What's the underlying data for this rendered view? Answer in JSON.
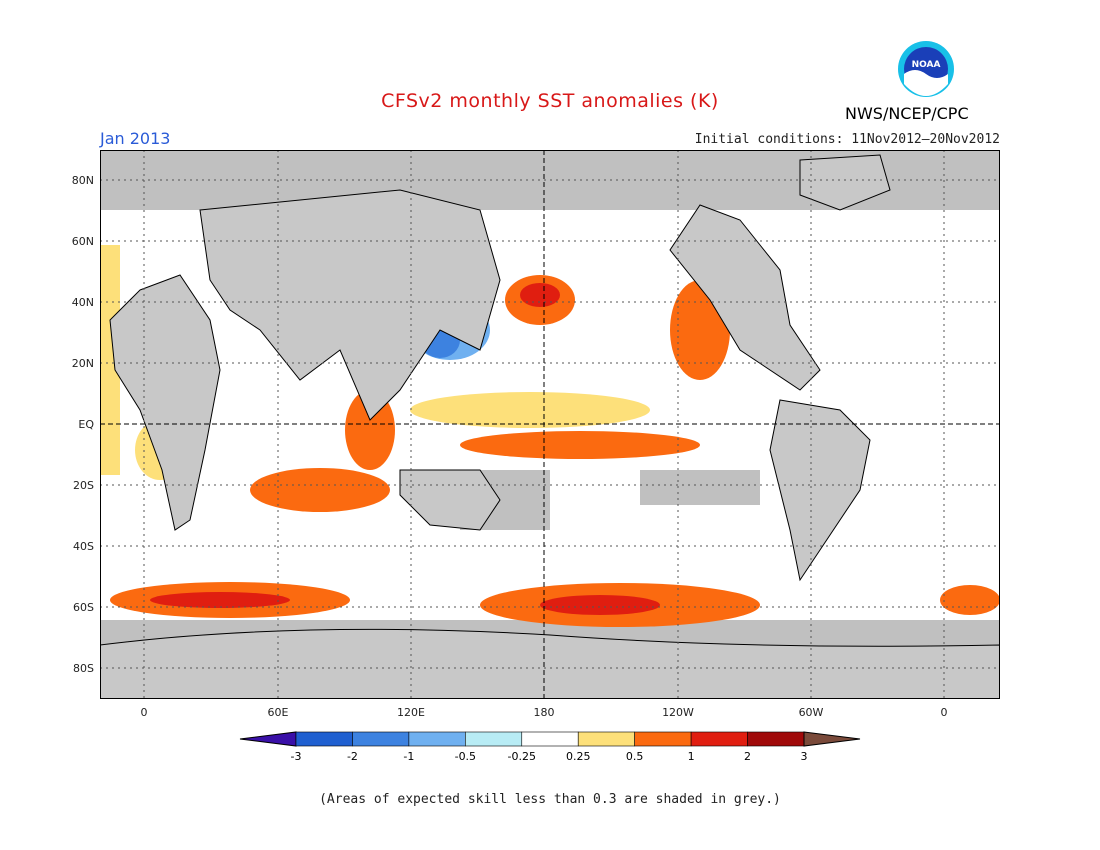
{
  "header": {
    "title": "CFSv2 monthly SST anomalies (K)",
    "month": "Jan 2013",
    "initial_conditions": "Initial conditions: 11Nov2012–20Nov2012",
    "agency": "NWS/NCEP/CPC",
    "logo_text": "NOAA"
  },
  "map": {
    "lat_labels": [
      "80N",
      "60N",
      "40N",
      "20N",
      "EQ",
      "20S",
      "40S",
      "60S",
      "80S"
    ],
    "lon_labels": [
      "0",
      "60E",
      "120E",
      "180",
      "120W",
      "60W",
      "0"
    ],
    "land_color": "#c8c8c8",
    "low_skill_color": "#c0c0c0"
  },
  "colorbar": {
    "labels": [
      "-3",
      "-2",
      "-1",
      "-0.5",
      "-0.25",
      "0.25",
      "0.5",
      "1",
      "2",
      "3"
    ],
    "colors": [
      "#3a10a8",
      "#1f5fd0",
      "#3d82e0",
      "#6fb0f0",
      "#b8ecf5",
      "#ffffff",
      "#fde07a",
      "#fb6a10",
      "#e01e10",
      "#a00a0a",
      "#7a4a3a"
    ]
  },
  "footnote": "(Areas of expected skill less than 0.3 are shaded in grey.)"
}
